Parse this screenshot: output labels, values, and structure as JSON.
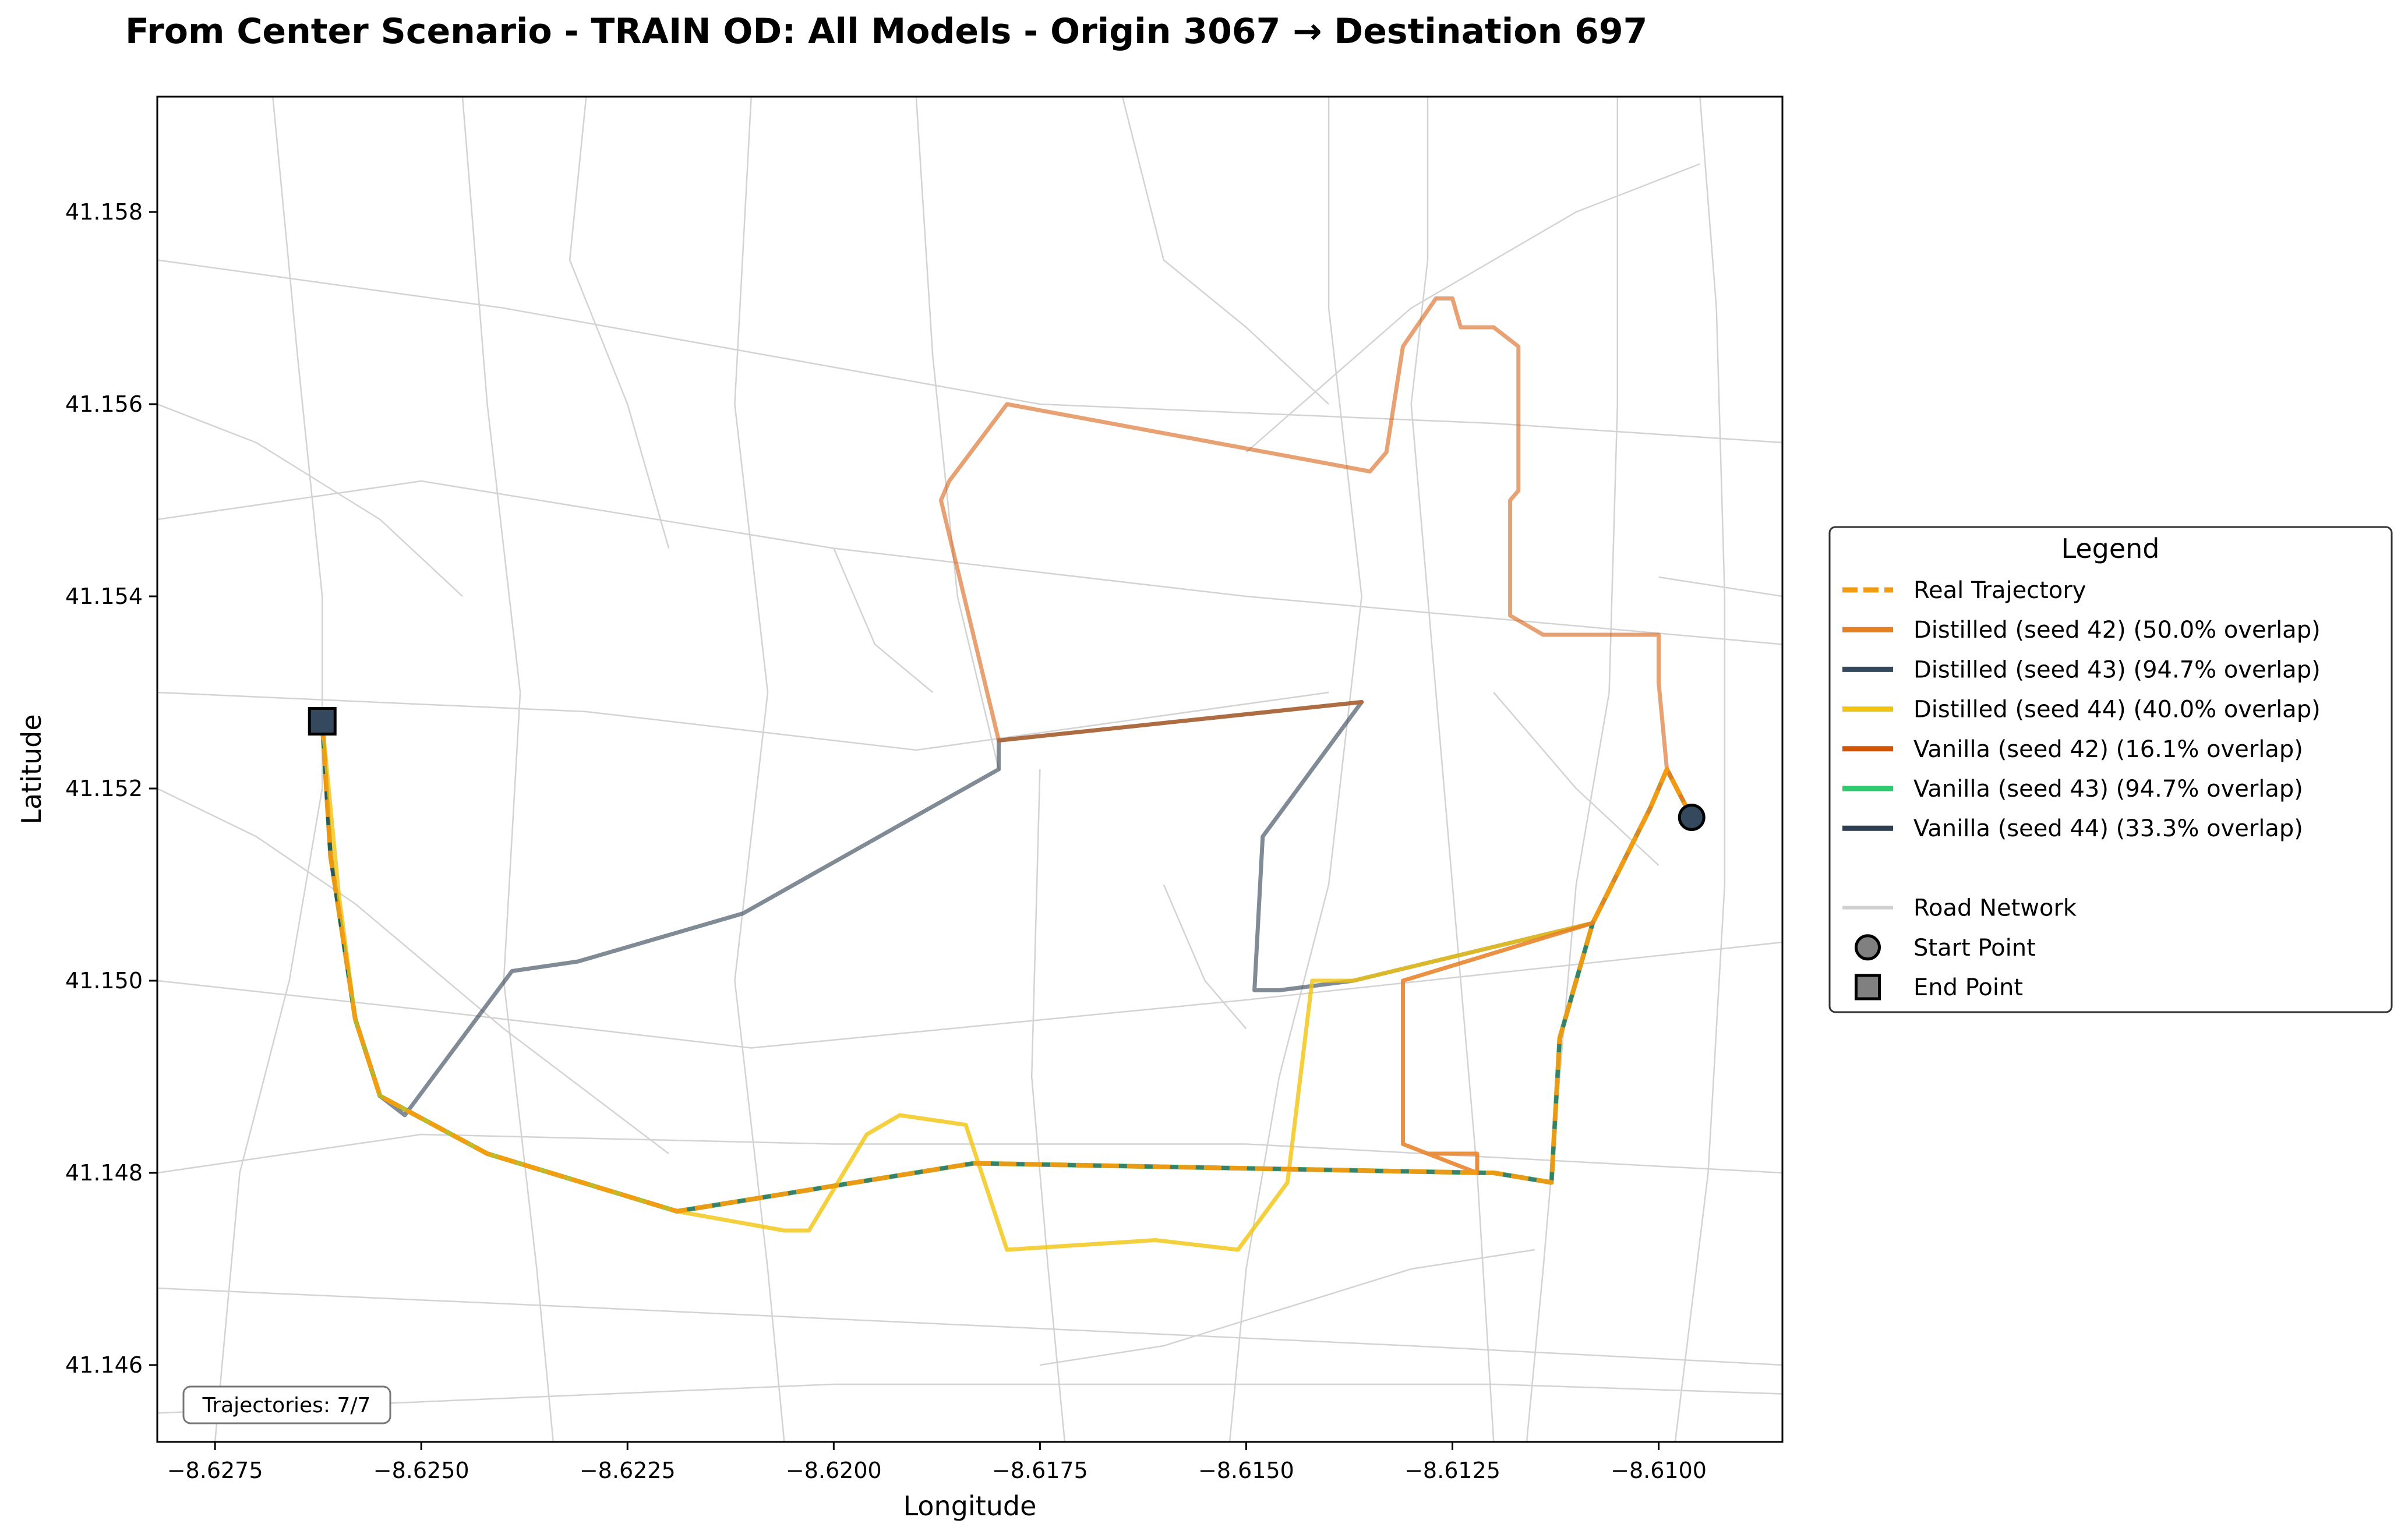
{
  "chart_data": {
    "type": "line",
    "title": "From Center Scenario - TRAIN OD: All Models - Origin 3067 → Destination 697",
    "xlabel": "Longitude",
    "ylabel": "Latitude",
    "xlim": [
      -8.6282,
      -8.6085
    ],
    "ylim": [
      41.1452,
      41.1592
    ],
    "xticks": [
      -8.6275,
      -8.625,
      -8.6225,
      -8.62,
      -8.6175,
      -8.615,
      -8.6125,
      -8.61
    ],
    "xtick_labels": [
      "−8.6275",
      "−8.6250",
      "−8.6225",
      "−8.6200",
      "−8.6175",
      "−8.6150",
      "−8.6125",
      "−8.6100"
    ],
    "yticks": [
      41.146,
      41.148,
      41.15,
      41.152,
      41.154,
      41.156,
      41.158
    ],
    "ytick_labels": [
      "41.146",
      "41.148",
      "41.150",
      "41.152",
      "41.154",
      "41.156",
      "41.158"
    ],
    "grid": false,
    "legend": {
      "title": "Legend",
      "placement": "right",
      "entries": [
        {
          "label": "Real Trajectory",
          "color": "#f39c12",
          "style": "dashed"
        },
        {
          "label": "Distilled (seed 42) (50.0% overlap)",
          "color": "#e67e22",
          "style": "solid"
        },
        {
          "label": "Distilled (seed 43) (94.7% overlap)",
          "color": "#34495e",
          "style": "solid"
        },
        {
          "label": "Distilled (seed 44) (40.0% overlap)",
          "color": "#f1c40f",
          "style": "solid"
        },
        {
          "label": "Vanilla (seed 42) (16.1% overlap)",
          "color": "#d35400",
          "style": "solid"
        },
        {
          "label": "Vanilla (seed 43) (94.7% overlap)",
          "color": "#2ecc71",
          "style": "solid"
        },
        {
          "label": "Vanilla (seed 44) (33.3% overlap)",
          "color": "#2c3e50",
          "style": "solid"
        },
        {
          "label": "",
          "style": "blank"
        },
        {
          "label": "Road Network",
          "color": "#d0d0d0",
          "style": "solid"
        },
        {
          "label": "Start Point",
          "color": "#808080",
          "style": "circle"
        },
        {
          "label": "End Point",
          "color": "#808080",
          "style": "square"
        }
      ]
    },
    "annotation": "Trajectories: 7/7",
    "start_point": [
      -8.6096,
      41.1517
    ],
    "end_point": [
      -8.6262,
      41.1527
    ],
    "series": [
      {
        "legend_index": 5,
        "color": "#2ecc71",
        "width": 8,
        "opacity": 0.9,
        "points": [
          [
            -8.6096,
            41.1517
          ],
          [
            -8.6099,
            41.1522
          ],
          [
            -8.6101,
            41.1518
          ],
          [
            -8.6108,
            41.1506
          ],
          [
            -8.6112,
            41.1494
          ],
          [
            -8.6113,
            41.1479
          ],
          [
            -8.612,
            41.148
          ],
          [
            -8.6121,
            41.148
          ],
          [
            -8.6183,
            41.1481
          ],
          [
            -8.6219,
            41.1476
          ],
          [
            -8.6242,
            41.1482
          ],
          [
            -8.6255,
            41.1488
          ],
          [
            -8.6258,
            41.1496
          ],
          [
            -8.6261,
            41.1513
          ],
          [
            -8.6262,
            41.1527
          ]
        ]
      },
      {
        "legend_index": 2,
        "color": "#34495e",
        "width": 7,
        "opacity": 0.6,
        "points": [
          [
            -8.6096,
            41.1517
          ],
          [
            -8.6099,
            41.1522
          ],
          [
            -8.6101,
            41.1518
          ],
          [
            -8.6108,
            41.1506
          ],
          [
            -8.6112,
            41.1494
          ],
          [
            -8.6113,
            41.1479
          ],
          [
            -8.612,
            41.148
          ],
          [
            -8.6121,
            41.148
          ],
          [
            -8.6183,
            41.1481
          ],
          [
            -8.6219,
            41.1476
          ],
          [
            -8.6242,
            41.1482
          ],
          [
            -8.6255,
            41.1488
          ],
          [
            -8.6258,
            41.1496
          ],
          [
            -8.6261,
            41.1513
          ],
          [
            -8.6262,
            41.1527
          ]
        ]
      },
      {
        "legend_index": 6,
        "color": "#2c3e50",
        "width": 7,
        "opacity": 0.6,
        "points": [
          [
            -8.6096,
            41.1517
          ],
          [
            -8.6099,
            41.1522
          ],
          [
            -8.6101,
            41.1518
          ],
          [
            -8.6108,
            41.1506
          ],
          [
            -8.6137,
            41.15
          ],
          [
            -8.6146,
            41.1499
          ],
          [
            -8.6149,
            41.1499
          ],
          [
            -8.6148,
            41.1515
          ],
          [
            -8.6136,
            41.1529
          ],
          [
            -8.618,
            41.1525
          ],
          [
            -8.618,
            41.1522
          ],
          [
            -8.6211,
            41.1507
          ],
          [
            -8.6231,
            41.1502
          ],
          [
            -8.6239,
            41.1501
          ],
          [
            -8.6252,
            41.1486
          ],
          [
            -8.6255,
            41.1488
          ],
          [
            -8.6258,
            41.1496
          ],
          [
            -8.6261,
            41.1513
          ],
          [
            -8.6262,
            41.1527
          ]
        ]
      },
      {
        "legend_index": 3,
        "color": "#f1c40f",
        "width": 7,
        "opacity": 0.8,
        "points": [
          [
            -8.6096,
            41.1517
          ],
          [
            -8.6099,
            41.1522
          ],
          [
            -8.6101,
            41.1518
          ],
          [
            -8.6108,
            41.1506
          ],
          [
            -8.6137,
            41.15
          ],
          [
            -8.6142,
            41.15
          ],
          [
            -8.6145,
            41.1479
          ],
          [
            -8.6151,
            41.1472
          ],
          [
            -8.6161,
            41.1473
          ],
          [
            -8.6179,
            41.1472
          ],
          [
            -8.6184,
            41.1485
          ],
          [
            -8.6192,
            41.1486
          ],
          [
            -8.6196,
            41.1484
          ],
          [
            -8.6203,
            41.1474
          ],
          [
            -8.6206,
            41.1474
          ],
          [
            -8.6219,
            41.1476
          ],
          [
            -8.6242,
            41.1482
          ],
          [
            -8.6255,
            41.1488
          ],
          [
            -8.6258,
            41.1496
          ],
          [
            -8.626,
            41.1509
          ],
          [
            -8.6262,
            41.1527
          ]
        ]
      },
      {
        "legend_index": 4,
        "color": "#d35400",
        "width": 7,
        "opacity": 0.55,
        "points": [
          [
            -8.6096,
            41.1517
          ],
          [
            -8.6099,
            41.1522
          ],
          [
            -8.61,
            41.1531
          ],
          [
            -8.61,
            41.1536
          ],
          [
            -8.6114,
            41.1536
          ],
          [
            -8.6118,
            41.1538
          ],
          [
            -8.6118,
            41.155
          ],
          [
            -8.6117,
            41.1551
          ],
          [
            -8.6117,
            41.1566
          ],
          [
            -8.612,
            41.1568
          ],
          [
            -8.6124,
            41.1568
          ],
          [
            -8.6125,
            41.1571
          ],
          [
            -8.6127,
            41.1571
          ],
          [
            -8.6131,
            41.1566
          ],
          [
            -8.6133,
            41.1555
          ],
          [
            -8.6135,
            41.1553
          ],
          [
            -8.6179,
            41.156
          ],
          [
            -8.6186,
            41.1552
          ],
          [
            -8.6187,
            41.155
          ],
          [
            -8.618,
            41.1525
          ],
          [
            -8.6136,
            41.1529
          ]
        ]
      },
      {
        "legend_index": 1,
        "color": "#e67e22",
        "width": 7,
        "opacity": 0.85,
        "points": [
          [
            -8.6096,
            41.1517
          ],
          [
            -8.6099,
            41.1522
          ],
          [
            -8.6101,
            41.1518
          ],
          [
            -8.6108,
            41.1506
          ],
          [
            -8.6131,
            41.15
          ],
          [
            -8.6131,
            41.1483
          ],
          [
            -8.6122,
            41.148
          ],
          [
            -8.6122,
            41.1482
          ],
          [
            -8.6128,
            41.1482
          ],
          [
            -8.6131,
            41.1483
          ]
        ]
      },
      {
        "legend_index": 0,
        "color": "#f39c12",
        "width": 8,
        "opacity": 0.95,
        "dash": "30,14",
        "points": [
          [
            -8.6096,
            41.1517
          ],
          [
            -8.6099,
            41.1522
          ],
          [
            -8.6101,
            41.1518
          ],
          [
            -8.6108,
            41.1506
          ],
          [
            -8.6112,
            41.1494
          ],
          [
            -8.6113,
            41.1479
          ],
          [
            -8.612,
            41.148
          ],
          [
            -8.6121,
            41.148
          ],
          [
            -8.6183,
            41.1481
          ],
          [
            -8.6219,
            41.1476
          ],
          [
            -8.6242,
            41.1482
          ],
          [
            -8.6255,
            41.1488
          ],
          [
            -8.6258,
            41.1496
          ],
          [
            -8.6261,
            41.1513
          ],
          [
            -8.6262,
            41.1527
          ]
        ]
      }
    ],
    "road_network": [
      [
        [
          -8.6282,
          41.1575
        ],
        [
          -8.624,
          41.157
        ],
        [
          -8.6175,
          41.156
        ],
        [
          -8.612,
          41.1558
        ],
        [
          -8.6085,
          41.1556
        ]
      ],
      [
        [
          -8.6282,
          41.1548
        ],
        [
          -8.625,
          41.1552
        ],
        [
          -8.62,
          41.1545
        ],
        [
          -8.615,
          41.154
        ],
        [
          -8.6085,
          41.1535
        ]
      ],
      [
        [
          -8.6282,
          41.153
        ],
        [
          -8.623,
          41.1528
        ],
        [
          -8.619,
          41.1524
        ],
        [
          -8.614,
          41.153
        ]
      ],
      [
        [
          -8.6282,
          41.15
        ],
        [
          -8.625,
          41.1497
        ],
        [
          -8.621,
          41.1493
        ],
        [
          -8.615,
          41.1498
        ],
        [
          -8.6085,
          41.1504
        ]
      ],
      [
        [
          -8.6282,
          41.1468
        ],
        [
          -8.623,
          41.1466
        ],
        [
          -8.618,
          41.1464
        ],
        [
          -8.613,
          41.1462
        ],
        [
          -8.6085,
          41.146
        ]
      ],
      [
        [
          -8.6282,
          41.148
        ],
        [
          -8.625,
          41.1484
        ],
        [
          -8.62,
          41.1483
        ],
        [
          -8.615,
          41.1483
        ],
        [
          -8.6085,
          41.148
        ]
      ],
      [
        [
          -8.6282,
          41.1455
        ],
        [
          -8.62,
          41.1458
        ],
        [
          -8.612,
          41.1458
        ],
        [
          -8.6085,
          41.1457
        ]
      ],
      [
        [
          -8.6268,
          41.1592
        ],
        [
          -8.6265,
          41.1565
        ],
        [
          -8.6262,
          41.154
        ],
        [
          -8.6262,
          41.152
        ],
        [
          -8.6266,
          41.15
        ],
        [
          -8.6272,
          41.148
        ],
        [
          -8.6275,
          41.1452
        ]
      ],
      [
        [
          -8.6245,
          41.1592
        ],
        [
          -8.6242,
          41.156
        ],
        [
          -8.6238,
          41.153
        ],
        [
          -8.624,
          41.15
        ],
        [
          -8.6236,
          41.147
        ],
        [
          -8.6234,
          41.1452
        ]
      ],
      [
        [
          -8.621,
          41.1592
        ],
        [
          -8.6212,
          41.156
        ],
        [
          -8.6208,
          41.153
        ],
        [
          -8.6212,
          41.15
        ],
        [
          -8.6208,
          41.147
        ],
        [
          -8.6206,
          41.1452
        ]
      ],
      [
        [
          -8.619,
          41.1592
        ],
        [
          -8.6188,
          41.1565
        ],
        [
          -8.6185,
          41.154
        ],
        [
          -8.618,
          41.1522
        ]
      ],
      [
        [
          -8.6175,
          41.1522
        ],
        [
          -8.6176,
          41.149
        ],
        [
          -8.6174,
          41.147
        ],
        [
          -8.6172,
          41.1452
        ]
      ],
      [
        [
          -8.6165,
          41.1592
        ],
        [
          -8.616,
          41.1575
        ],
        [
          -8.615,
          41.1568
        ],
        [
          -8.614,
          41.156
        ]
      ],
      [
        [
          -8.614,
          41.1592
        ],
        [
          -8.614,
          41.157
        ],
        [
          -8.6136,
          41.154
        ],
        [
          -8.614,
          41.151
        ],
        [
          -8.6146,
          41.149
        ],
        [
          -8.615,
          41.147
        ],
        [
          -8.6152,
          41.1452
        ]
      ],
      [
        [
          -8.6128,
          41.1592
        ],
        [
          -8.6128,
          41.1575
        ],
        [
          -8.613,
          41.156
        ],
        [
          -8.6128,
          41.154
        ],
        [
          -8.6126,
          41.152
        ],
        [
          -8.6124,
          41.15
        ],
        [
          -8.6122,
          41.148
        ],
        [
          -8.612,
          41.1452
        ]
      ],
      [
        [
          -8.6105,
          41.1592
        ],
        [
          -8.6105,
          41.156
        ],
        [
          -8.6106,
          41.153
        ],
        [
          -8.611,
          41.151
        ],
        [
          -8.6112,
          41.149
        ],
        [
          -8.6114,
          41.147
        ],
        [
          -8.6116,
          41.1452
        ]
      ],
      [
        [
          -8.6095,
          41.1592
        ],
        [
          -8.6093,
          41.157
        ],
        [
          -8.6092,
          41.154
        ],
        [
          -8.6092,
          41.151
        ],
        [
          -8.6094,
          41.148
        ],
        [
          -8.6098,
          41.1452
        ]
      ],
      [
        [
          -8.61,
          41.1542
        ],
        [
          -8.6085,
          41.154
        ]
      ],
      [
        [
          -8.615,
          41.1555
        ],
        [
          -8.613,
          41.157
        ],
        [
          -8.611,
          41.158
        ],
        [
          -8.6095,
          41.1585
        ]
      ],
      [
        [
          -8.6282,
          41.152
        ],
        [
          -8.627,
          41.1515
        ],
        [
          -8.6258,
          41.1508
        ],
        [
          -8.624,
          41.1495
        ],
        [
          -8.622,
          41.1482
        ]
      ],
      [
        [
          -8.6175,
          41.146
        ],
        [
          -8.616,
          41.1462
        ],
        [
          -8.6145,
          41.1466
        ],
        [
          -8.613,
          41.147
        ],
        [
          -8.6115,
          41.1472
        ]
      ],
      [
        [
          -8.6282,
          41.156
        ],
        [
          -8.627,
          41.1556
        ],
        [
          -8.6255,
          41.1548
        ],
        [
          -8.6245,
          41.154
        ]
      ],
      [
        [
          -8.623,
          41.1592
        ],
        [
          -8.6232,
          41.1575
        ],
        [
          -8.6225,
          41.156
        ],
        [
          -8.622,
          41.1545
        ]
      ],
      [
        [
          -8.62,
          41.1545
        ],
        [
          -8.6195,
          41.1535
        ],
        [
          -8.6188,
          41.153
        ]
      ],
      [
        [
          -8.612,
          41.153
        ],
        [
          -8.611,
          41.152
        ],
        [
          -8.61,
          41.1512
        ]
      ],
      [
        [
          -8.616,
          41.151
        ],
        [
          -8.6155,
          41.15
        ],
        [
          -8.615,
          41.1495
        ]
      ]
    ]
  }
}
